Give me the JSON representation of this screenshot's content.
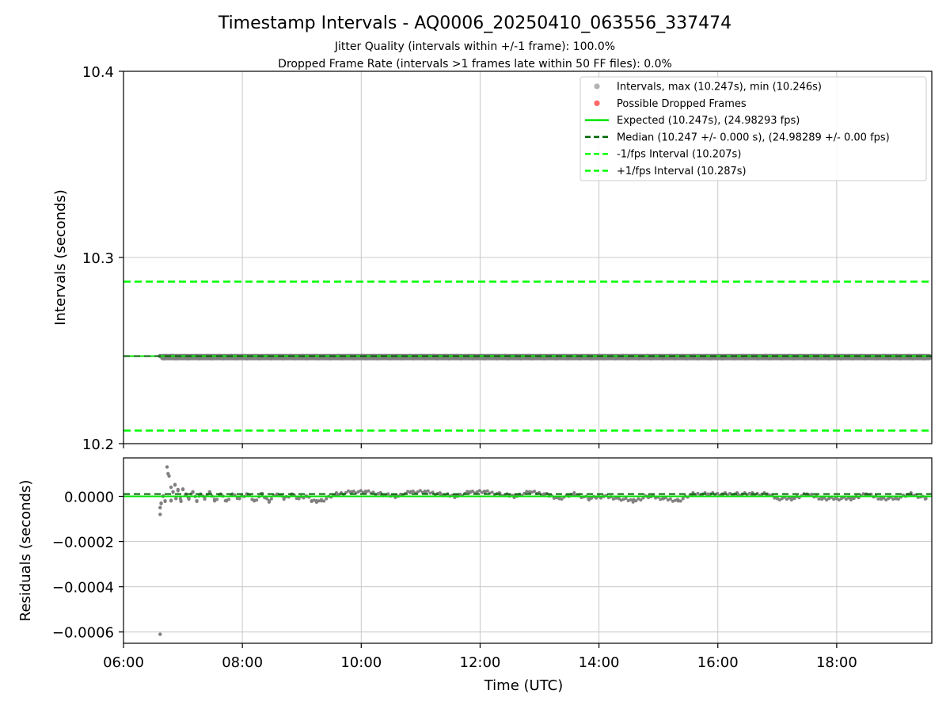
{
  "figure": {
    "title": "Timestamp Intervals - AQ0006_20250410_063556_337474",
    "subtitle_1": "Jitter Quality (intervals within +/-1 frame): 100.0%",
    "subtitle_2": "Dropped Frame Rate (intervals >1 frames late within 50 FF files): 0.0%"
  },
  "colors": {
    "intervals": "#808080",
    "dropped": "#ff6666",
    "expected": "#00e400",
    "median": "#006400",
    "fps_band": "#00ff00",
    "grid": "#c8c8c8"
  },
  "chart_data": [
    {
      "type": "scatter",
      "ylabel": "Intervals (seconds)",
      "ylim": [
        10.2,
        10.4
      ],
      "yticks": [
        10.2,
        10.3,
        10.4
      ],
      "ytick_labels": [
        "10.2",
        "10.3",
        "10.4"
      ],
      "xlim": [
        "06:00",
        "19:36"
      ],
      "xticks": [
        "06:00",
        "08:00",
        "10:00",
        "12:00",
        "14:00",
        "16:00",
        "18:00"
      ],
      "grid": true,
      "legend_position": "top-right",
      "legend": [
        {
          "label": "Intervals, max (10.247s), min (10.246s)",
          "kind": "dot-gray"
        },
        {
          "label": "Possible Dropped Frames",
          "kind": "dot-red"
        },
        {
          "label": "Expected (10.247s), (24.98293 fps)",
          "kind": "line-expected"
        },
        {
          "label": "Median (10.247 +/- 0.000 s), (24.98289 +/- 0.00 fps)",
          "kind": "dash-median"
        },
        {
          "label": "-1/fps Interval (10.207s)",
          "kind": "dash-band"
        },
        {
          "label": "+1/fps Interval (10.287s)",
          "kind": "dash-band"
        }
      ],
      "series": {
        "intervals": {
          "x_start": "06:37",
          "x_end": "19:36",
          "y_min": 10.246,
          "y_max": 10.247
        },
        "expected": 10.247,
        "median": 10.247,
        "minus_fps": 10.207,
        "plus_fps": 10.287
      }
    },
    {
      "type": "scatter",
      "ylabel": "Residuals (seconds)",
      "xlabel": "Time (UTC)",
      "ylim": [
        -0.00065,
        0.00017
      ],
      "yticks": [
        -0.0006,
        -0.0004,
        -0.0002,
        0.0
      ],
      "ytick_labels": [
        "−0.0006",
        "−0.0004",
        "−0.0002",
        "0.0000"
      ],
      "xlim": [
        "06:00",
        "19:36"
      ],
      "xticks": [
        "06:00",
        "08:00",
        "10:00",
        "12:00",
        "14:00",
        "16:00",
        "18:00"
      ],
      "xtick_labels": [
        "06:00",
        "08:00",
        "10:00",
        "12:00",
        "14:00",
        "16:00",
        "18:00"
      ],
      "grid": true,
      "expected": 0.0,
      "median": 1e-05,
      "residuals": [
        [
          "06:37",
          -0.00061
        ],
        [
          "06:37",
          -8e-05
        ],
        [
          "06:37",
          -5e-05
        ],
        [
          "06:38",
          -3e-05
        ],
        [
          "06:40",
          0.0
        ],
        [
          "06:42",
          -2e-05
        ],
        [
          "06:44",
          0.00013
        ],
        [
          "06:45",
          0.0001
        ],
        [
          "06:46",
          9e-05
        ],
        [
          "06:48",
          4e-05
        ],
        [
          "06:48",
          -2e-05
        ],
        [
          "06:50",
          2e-05
        ],
        [
          "06:52",
          5e-05
        ],
        [
          "06:53",
          -1e-05
        ],
        [
          "06:55",
          3e-05
        ],
        [
          "06:58",
          -2e-05
        ],
        [
          "07:00",
          3e-05
        ],
        [
          "07:03",
          1e-05
        ],
        [
          "07:06",
          -1e-05
        ],
        [
          "07:10",
          2e-05
        ],
        [
          "07:14",
          -2e-05
        ],
        [
          "07:18",
          1e-05
        ],
        [
          "07:22",
          -1e-05
        ],
        [
          "07:27",
          2e-05
        ],
        [
          "07:32",
          -2e-05
        ],
        [
          "07:38",
          1e-05
        ],
        [
          "07:44",
          -2e-05
        ],
        [
          "07:50",
          1e-05
        ],
        [
          "07:57",
          -1e-05
        ],
        [
          "08:05",
          1e-05
        ],
        [
          "08:12",
          -2e-05
        ],
        [
          "08:20",
          1e-05
        ],
        [
          "08:27",
          -2e-05
        ],
        [
          "08:35",
          1e-05
        ],
        [
          "08:42",
          -1e-05
        ],
        [
          "08:50",
          1e-05
        ],
        [
          "08:57",
          -1e-05
        ],
        [
          "09:05",
          0.0
        ],
        [
          "09:10",
          -2e-05
        ],
        [
          "09:15",
          -2e-05
        ],
        [
          "09:20",
          -2e-05
        ],
        [
          "09:35",
          1e-05
        ],
        [
          "09:50",
          2e-05
        ],
        [
          "10:05",
          2e-05
        ],
        [
          "10:20",
          1e-05
        ],
        [
          "10:35",
          0.0
        ],
        [
          "10:50",
          2e-05
        ],
        [
          "11:05",
          2e-05
        ],
        [
          "11:20",
          1e-05
        ],
        [
          "11:35",
          0.0
        ],
        [
          "11:50",
          2e-05
        ],
        [
          "12:05",
          2e-05
        ],
        [
          "12:20",
          1e-05
        ],
        [
          "12:35",
          0.0
        ],
        [
          "12:50",
          2e-05
        ],
        [
          "13:05",
          1e-05
        ],
        [
          "13:20",
          -1e-05
        ],
        [
          "13:35",
          1e-05
        ],
        [
          "13:50",
          -1e-05
        ],
        [
          "14:05",
          0.0
        ],
        [
          "14:20",
          -1e-05
        ],
        [
          "14:35",
          -2e-05
        ],
        [
          "14:50",
          0.0
        ],
        [
          "15:05",
          -1e-05
        ],
        [
          "15:20",
          -2e-05
        ],
        [
          "15:35",
          1e-05
        ],
        [
          "15:50",
          1e-05
        ],
        [
          "16:05",
          1e-05
        ],
        [
          "16:20",
          1e-05
        ],
        [
          "16:35",
          1e-05
        ],
        [
          "16:50",
          1e-05
        ],
        [
          "17:00",
          -1e-05
        ],
        [
          "17:15",
          -1e-05
        ],
        [
          "17:30",
          1e-05
        ],
        [
          "17:45",
          -1e-05
        ],
        [
          "18:00",
          -1e-05
        ],
        [
          "18:15",
          -1e-05
        ],
        [
          "18:30",
          1e-05
        ],
        [
          "18:45",
          -1e-05
        ],
        [
          "19:00",
          -1e-05
        ],
        [
          "19:15",
          1e-05
        ],
        [
          "19:30",
          -1e-05
        ]
      ]
    }
  ]
}
